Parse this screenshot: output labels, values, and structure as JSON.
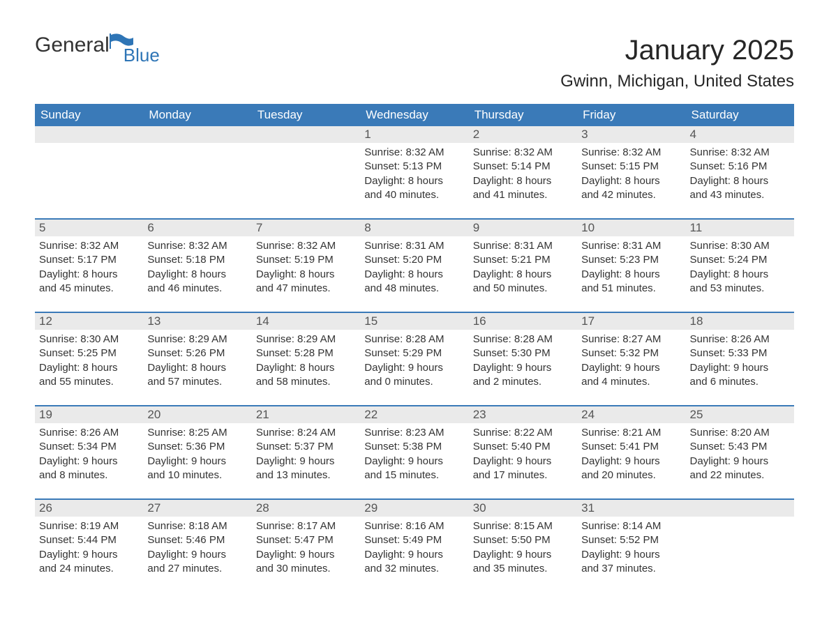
{
  "logo": {
    "general": "General",
    "blue": "Blue"
  },
  "title": "January 2025",
  "subtitle": "Gwinn, Michigan, United States",
  "colors": {
    "header_bg": "#3a7ab8",
    "header_text": "#ffffff",
    "row_border": "#3a7ab8",
    "daynum_bg": "#eaeaea",
    "daynum_text": "#555555",
    "body_text": "#333333",
    "logo_blue": "#2e75b6",
    "background": "#ffffff"
  },
  "typography": {
    "title_fontsize": 40,
    "subtitle_fontsize": 24,
    "weekday_fontsize": 17,
    "daynum_fontsize": 17,
    "body_fontsize": 15,
    "font_family": "Arial"
  },
  "layout": {
    "columns": 7,
    "rows": 5,
    "cell_min_height": 132
  },
  "weekdays": [
    "Sunday",
    "Monday",
    "Tuesday",
    "Wednesday",
    "Thursday",
    "Friday",
    "Saturday"
  ],
  "weeks": [
    [
      {
        "day": "",
        "sunrise": "",
        "sunset": "",
        "daylight1": "",
        "daylight2": ""
      },
      {
        "day": "",
        "sunrise": "",
        "sunset": "",
        "daylight1": "",
        "daylight2": ""
      },
      {
        "day": "",
        "sunrise": "",
        "sunset": "",
        "daylight1": "",
        "daylight2": ""
      },
      {
        "day": "1",
        "sunrise": "Sunrise: 8:32 AM",
        "sunset": "Sunset: 5:13 PM",
        "daylight1": "Daylight: 8 hours",
        "daylight2": "and 40 minutes."
      },
      {
        "day": "2",
        "sunrise": "Sunrise: 8:32 AM",
        "sunset": "Sunset: 5:14 PM",
        "daylight1": "Daylight: 8 hours",
        "daylight2": "and 41 minutes."
      },
      {
        "day": "3",
        "sunrise": "Sunrise: 8:32 AM",
        "sunset": "Sunset: 5:15 PM",
        "daylight1": "Daylight: 8 hours",
        "daylight2": "and 42 minutes."
      },
      {
        "day": "4",
        "sunrise": "Sunrise: 8:32 AM",
        "sunset": "Sunset: 5:16 PM",
        "daylight1": "Daylight: 8 hours",
        "daylight2": "and 43 minutes."
      }
    ],
    [
      {
        "day": "5",
        "sunrise": "Sunrise: 8:32 AM",
        "sunset": "Sunset: 5:17 PM",
        "daylight1": "Daylight: 8 hours",
        "daylight2": "and 45 minutes."
      },
      {
        "day": "6",
        "sunrise": "Sunrise: 8:32 AM",
        "sunset": "Sunset: 5:18 PM",
        "daylight1": "Daylight: 8 hours",
        "daylight2": "and 46 minutes."
      },
      {
        "day": "7",
        "sunrise": "Sunrise: 8:32 AM",
        "sunset": "Sunset: 5:19 PM",
        "daylight1": "Daylight: 8 hours",
        "daylight2": "and 47 minutes."
      },
      {
        "day": "8",
        "sunrise": "Sunrise: 8:31 AM",
        "sunset": "Sunset: 5:20 PM",
        "daylight1": "Daylight: 8 hours",
        "daylight2": "and 48 minutes."
      },
      {
        "day": "9",
        "sunrise": "Sunrise: 8:31 AM",
        "sunset": "Sunset: 5:21 PM",
        "daylight1": "Daylight: 8 hours",
        "daylight2": "and 50 minutes."
      },
      {
        "day": "10",
        "sunrise": "Sunrise: 8:31 AM",
        "sunset": "Sunset: 5:23 PM",
        "daylight1": "Daylight: 8 hours",
        "daylight2": "and 51 minutes."
      },
      {
        "day": "11",
        "sunrise": "Sunrise: 8:30 AM",
        "sunset": "Sunset: 5:24 PM",
        "daylight1": "Daylight: 8 hours",
        "daylight2": "and 53 minutes."
      }
    ],
    [
      {
        "day": "12",
        "sunrise": "Sunrise: 8:30 AM",
        "sunset": "Sunset: 5:25 PM",
        "daylight1": "Daylight: 8 hours",
        "daylight2": "and 55 minutes."
      },
      {
        "day": "13",
        "sunrise": "Sunrise: 8:29 AM",
        "sunset": "Sunset: 5:26 PM",
        "daylight1": "Daylight: 8 hours",
        "daylight2": "and 57 minutes."
      },
      {
        "day": "14",
        "sunrise": "Sunrise: 8:29 AM",
        "sunset": "Sunset: 5:28 PM",
        "daylight1": "Daylight: 8 hours",
        "daylight2": "and 58 minutes."
      },
      {
        "day": "15",
        "sunrise": "Sunrise: 8:28 AM",
        "sunset": "Sunset: 5:29 PM",
        "daylight1": "Daylight: 9 hours",
        "daylight2": "and 0 minutes."
      },
      {
        "day": "16",
        "sunrise": "Sunrise: 8:28 AM",
        "sunset": "Sunset: 5:30 PM",
        "daylight1": "Daylight: 9 hours",
        "daylight2": "and 2 minutes."
      },
      {
        "day": "17",
        "sunrise": "Sunrise: 8:27 AM",
        "sunset": "Sunset: 5:32 PM",
        "daylight1": "Daylight: 9 hours",
        "daylight2": "and 4 minutes."
      },
      {
        "day": "18",
        "sunrise": "Sunrise: 8:26 AM",
        "sunset": "Sunset: 5:33 PM",
        "daylight1": "Daylight: 9 hours",
        "daylight2": "and 6 minutes."
      }
    ],
    [
      {
        "day": "19",
        "sunrise": "Sunrise: 8:26 AM",
        "sunset": "Sunset: 5:34 PM",
        "daylight1": "Daylight: 9 hours",
        "daylight2": "and 8 minutes."
      },
      {
        "day": "20",
        "sunrise": "Sunrise: 8:25 AM",
        "sunset": "Sunset: 5:36 PM",
        "daylight1": "Daylight: 9 hours",
        "daylight2": "and 10 minutes."
      },
      {
        "day": "21",
        "sunrise": "Sunrise: 8:24 AM",
        "sunset": "Sunset: 5:37 PM",
        "daylight1": "Daylight: 9 hours",
        "daylight2": "and 13 minutes."
      },
      {
        "day": "22",
        "sunrise": "Sunrise: 8:23 AM",
        "sunset": "Sunset: 5:38 PM",
        "daylight1": "Daylight: 9 hours",
        "daylight2": "and 15 minutes."
      },
      {
        "day": "23",
        "sunrise": "Sunrise: 8:22 AM",
        "sunset": "Sunset: 5:40 PM",
        "daylight1": "Daylight: 9 hours",
        "daylight2": "and 17 minutes."
      },
      {
        "day": "24",
        "sunrise": "Sunrise: 8:21 AM",
        "sunset": "Sunset: 5:41 PM",
        "daylight1": "Daylight: 9 hours",
        "daylight2": "and 20 minutes."
      },
      {
        "day": "25",
        "sunrise": "Sunrise: 8:20 AM",
        "sunset": "Sunset: 5:43 PM",
        "daylight1": "Daylight: 9 hours",
        "daylight2": "and 22 minutes."
      }
    ],
    [
      {
        "day": "26",
        "sunrise": "Sunrise: 8:19 AM",
        "sunset": "Sunset: 5:44 PM",
        "daylight1": "Daylight: 9 hours",
        "daylight2": "and 24 minutes."
      },
      {
        "day": "27",
        "sunrise": "Sunrise: 8:18 AM",
        "sunset": "Sunset: 5:46 PM",
        "daylight1": "Daylight: 9 hours",
        "daylight2": "and 27 minutes."
      },
      {
        "day": "28",
        "sunrise": "Sunrise: 8:17 AM",
        "sunset": "Sunset: 5:47 PM",
        "daylight1": "Daylight: 9 hours",
        "daylight2": "and 30 minutes."
      },
      {
        "day": "29",
        "sunrise": "Sunrise: 8:16 AM",
        "sunset": "Sunset: 5:49 PM",
        "daylight1": "Daylight: 9 hours",
        "daylight2": "and 32 minutes."
      },
      {
        "day": "30",
        "sunrise": "Sunrise: 8:15 AM",
        "sunset": "Sunset: 5:50 PM",
        "daylight1": "Daylight: 9 hours",
        "daylight2": "and 35 minutes."
      },
      {
        "day": "31",
        "sunrise": "Sunrise: 8:14 AM",
        "sunset": "Sunset: 5:52 PM",
        "daylight1": "Daylight: 9 hours",
        "daylight2": "and 37 minutes."
      },
      {
        "day": "",
        "sunrise": "",
        "sunset": "",
        "daylight1": "",
        "daylight2": ""
      }
    ]
  ]
}
